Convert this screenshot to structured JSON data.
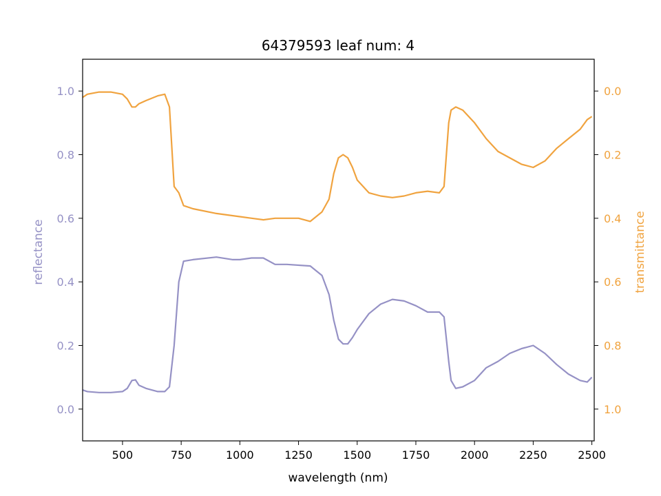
{
  "chart_data": {
    "type": "line",
    "title": "64379593 leaf num: 4",
    "xlabel": "wavelength (nm)",
    "ylabel_left": "reflectance",
    "ylabel_right": "transmittance",
    "xlim": [
      330,
      2510
    ],
    "ylim_left": [
      -0.1,
      1.1
    ],
    "ylim_right_inverted": [
      1.1,
      -0.1
    ],
    "x_ticks": [
      "500",
      "750",
      "1000",
      "1250",
      "1500",
      "1750",
      "2000",
      "2250",
      "2500"
    ],
    "y_left_ticks": [
      "0.0",
      "0.2",
      "0.4",
      "0.6",
      "0.8",
      "1.0"
    ],
    "y_right_ticks": [
      "0.0",
      "0.2",
      "0.4",
      "0.6",
      "0.8",
      "1.0"
    ],
    "colors": {
      "reflectance": "#9591c5",
      "transmittance": "#f0a33f"
    },
    "series": [
      {
        "axis": "left",
        "color": "#9591c5",
        "x": [
          330,
          350,
          400,
          450,
          500,
          520,
          540,
          555,
          570,
          600,
          650,
          680,
          700,
          720,
          740,
          760,
          800,
          900,
          970,
          1000,
          1050,
          1100,
          1150,
          1200,
          1300,
          1350,
          1380,
          1400,
          1420,
          1440,
          1460,
          1480,
          1500,
          1550,
          1600,
          1650,
          1700,
          1750,
          1800,
          1850,
          1870,
          1880,
          1890,
          1900,
          1920,
          1950,
          2000,
          2050,
          2100,
          2150,
          2200,
          2250,
          2300,
          2350,
          2400,
          2450,
          2480,
          2500
        ],
        "y": [
          0.06,
          0.055,
          0.052,
          0.052,
          0.055,
          0.065,
          0.09,
          0.092,
          0.075,
          0.065,
          0.055,
          0.055,
          0.07,
          0.2,
          0.4,
          0.465,
          0.47,
          0.478,
          0.47,
          0.47,
          0.475,
          0.475,
          0.455,
          0.455,
          0.45,
          0.42,
          0.36,
          0.28,
          0.22,
          0.205,
          0.205,
          0.225,
          0.25,
          0.3,
          0.33,
          0.345,
          0.34,
          0.325,
          0.305,
          0.305,
          0.29,
          0.22,
          0.15,
          0.09,
          0.065,
          0.07,
          0.09,
          0.13,
          0.15,
          0.175,
          0.19,
          0.2,
          0.175,
          0.14,
          0.11,
          0.09,
          0.085,
          0.1
        ]
      },
      {
        "axis": "right",
        "color": "#f0a33f",
        "x": [
          330,
          350,
          400,
          450,
          500,
          520,
          540,
          555,
          570,
          600,
          650,
          680,
          700,
          720,
          740,
          760,
          800,
          900,
          1000,
          1050,
          1100,
          1150,
          1200,
          1250,
          1300,
          1350,
          1380,
          1400,
          1420,
          1440,
          1460,
          1480,
          1500,
          1550,
          1600,
          1650,
          1700,
          1750,
          1800,
          1850,
          1870,
          1880,
          1890,
          1900,
          1920,
          1950,
          2000,
          2050,
          2100,
          2150,
          2200,
          2250,
          2300,
          2350,
          2400,
          2450,
          2480,
          2500
        ],
        "y": [
          0.02,
          0.01,
          0.003,
          0.003,
          0.01,
          0.025,
          0.05,
          0.05,
          0.04,
          0.03,
          0.015,
          0.01,
          0.05,
          0.3,
          0.32,
          0.36,
          0.37,
          0.385,
          0.395,
          0.4,
          0.405,
          0.4,
          0.4,
          0.4,
          0.41,
          0.38,
          0.34,
          0.26,
          0.21,
          0.2,
          0.21,
          0.24,
          0.28,
          0.32,
          0.33,
          0.335,
          0.33,
          0.32,
          0.315,
          0.32,
          0.3,
          0.2,
          0.1,
          0.06,
          0.05,
          0.06,
          0.1,
          0.15,
          0.19,
          0.21,
          0.23,
          0.24,
          0.22,
          0.18,
          0.15,
          0.12,
          0.09,
          0.08
        ]
      }
    ]
  }
}
